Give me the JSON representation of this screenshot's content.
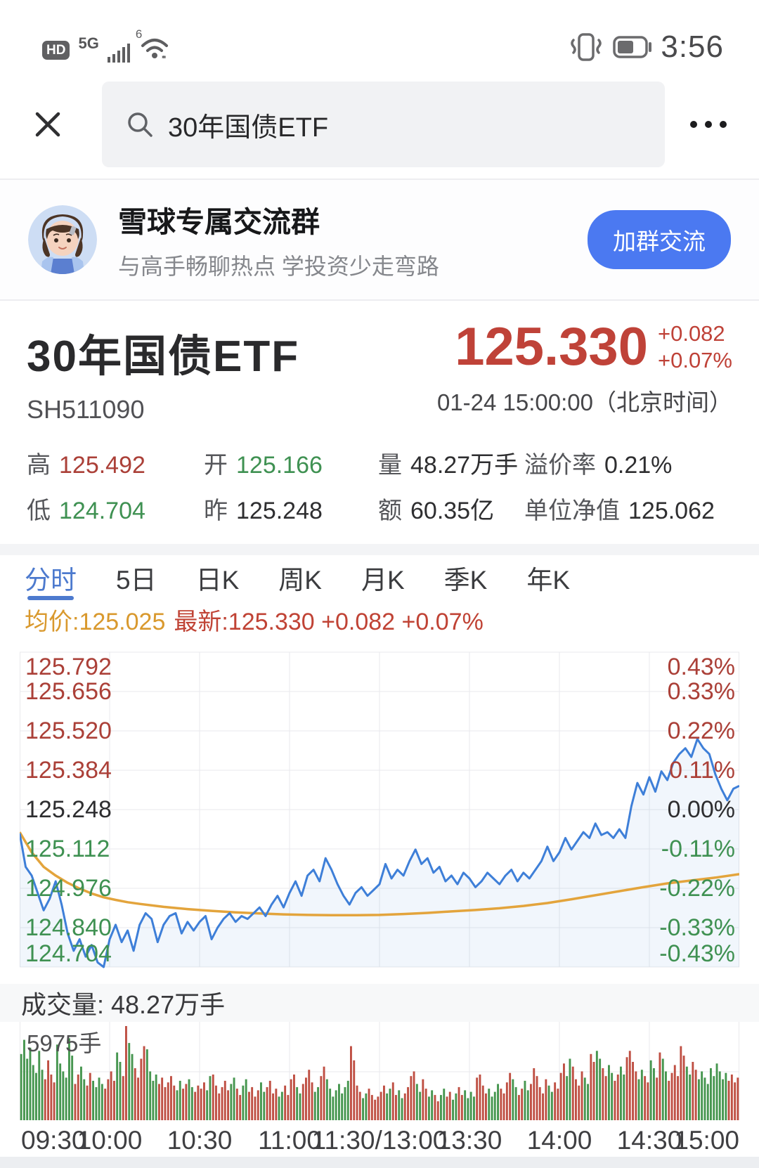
{
  "status_bar": {
    "carrier_badge": "HD",
    "network": "5G",
    "wifi_label": "6",
    "time": "3:56"
  },
  "search": {
    "query": "30年国债ETF"
  },
  "banner": {
    "title": "雪球专属交流群",
    "subtitle": "与高手畅聊热点 学投资少走弯路",
    "button_label": "加群交流"
  },
  "stock": {
    "name": "30年国债ETF",
    "code": "SH511090",
    "price": "125.330",
    "change": "+0.082",
    "change_pct": "+0.07%",
    "timestamp": "01-24 15:00:00（北京时间）",
    "stats": [
      {
        "label": "高",
        "value": "125.492",
        "tone": "up"
      },
      {
        "label": "开",
        "value": "125.166",
        "tone": "down"
      },
      {
        "label": "量",
        "value": "48.27万手",
        "tone": "flat"
      },
      {
        "label": "溢价率",
        "value": "0.21%",
        "tone": "flat"
      },
      {
        "label": "低",
        "value": "124.704",
        "tone": "down"
      },
      {
        "label": "昨",
        "value": "125.248",
        "tone": "flat"
      },
      {
        "label": "额",
        "value": "60.35亿",
        "tone": "flat"
      },
      {
        "label": "单位净值",
        "value": "125.062",
        "tone": "flat"
      }
    ]
  },
  "tabs": [
    {
      "label": "分时",
      "active": true
    },
    {
      "label": "5日",
      "active": false
    },
    {
      "label": "日K",
      "active": false
    },
    {
      "label": "周K",
      "active": false
    },
    {
      "label": "月K",
      "active": false
    },
    {
      "label": "季K",
      "active": false
    },
    {
      "label": "年K",
      "active": false
    }
  ],
  "chart_info": {
    "avg": "均价:125.025",
    "latest": "最新:125.330 +0.082 +0.07%"
  },
  "chart_data": {
    "type": "line",
    "title": "分时 (intraday price of 30年国债ETF SH511090)",
    "prev_close": 125.248,
    "high": 125.492,
    "low": 124.704,
    "last": 125.33,
    "vwap": 125.025,
    "y_min": 124.704,
    "y_max": 125.792,
    "x_axis": {
      "labels": [
        "09:30",
        "10:00",
        "10:30",
        "11:00",
        "11:30/13:00",
        "13:30",
        "14:00",
        "14:30",
        "15:00"
      ],
      "fractions": [
        0,
        0.125,
        0.25,
        0.375,
        0.5,
        0.625,
        0.75,
        0.875,
        1
      ]
    },
    "y_axis_left": [
      {
        "text": "125.792",
        "tone": "up"
      },
      {
        "text": "125.656",
        "tone": "up"
      },
      {
        "text": "125.520",
        "tone": "up"
      },
      {
        "text": "125.384",
        "tone": "up"
      },
      {
        "text": "125.248",
        "tone": "flat"
      },
      {
        "text": "125.112",
        "tone": "down"
      },
      {
        "text": "124.976",
        "tone": "down"
      },
      {
        "text": "124.840",
        "tone": "down"
      },
      {
        "text": "124.704",
        "tone": "down"
      }
    ],
    "y_axis_right": [
      {
        "text": "0.43%",
        "tone": "up"
      },
      {
        "text": "0.33%",
        "tone": "up"
      },
      {
        "text": "0.22%",
        "tone": "up"
      },
      {
        "text": "0.11%",
        "tone": "up"
      },
      {
        "text": "0.00%",
        "tone": "flat"
      },
      {
        "text": "-0.11%",
        "tone": "down"
      },
      {
        "text": "-0.22%",
        "tone": "down"
      },
      {
        "text": "-0.33%",
        "tone": "down"
      },
      {
        "text": "-0.43%",
        "tone": "down"
      }
    ],
    "price_minutes_step": 2,
    "price": [
      125.166,
      125.05,
      125.02,
      124.96,
      124.9,
      124.94,
      125.0,
      124.92,
      124.82,
      124.76,
      124.8,
      124.74,
      124.78,
      124.72,
      124.704,
      124.8,
      124.85,
      124.79,
      124.83,
      124.76,
      124.85,
      124.89,
      124.87,
      124.79,
      124.85,
      124.88,
      124.89,
      124.82,
      124.86,
      124.83,
      124.86,
      124.88,
      124.8,
      124.84,
      124.87,
      124.89,
      124.86,
      124.88,
      124.87,
      124.89,
      124.91,
      124.88,
      124.92,
      124.95,
      124.91,
      124.96,
      125.0,
      124.95,
      125.02,
      125.04,
      125.0,
      125.08,
      125.04,
      124.99,
      124.95,
      124.92,
      124.96,
      124.98,
      124.95,
      124.97,
      124.99,
      125.06,
      125.01,
      125.04,
      125.02,
      125.07,
      125.11,
      125.06,
      125.08,
      125.03,
      125.05,
      125.0,
      125.02,
      124.99,
      125.03,
      125.01,
      124.98,
      125.0,
      125.03,
      125.01,
      124.99,
      125.02,
      125.04,
      125.0,
      125.03,
      125.01,
      125.04,
      125.07,
      125.12,
      125.07,
      125.1,
      125.15,
      125.11,
      125.14,
      125.17,
      125.15,
      125.2,
      125.16,
      125.17,
      125.15,
      125.18,
      125.15,
      125.26,
      125.34,
      125.3,
      125.36,
      125.31,
      125.38,
      125.35,
      125.41,
      125.44,
      125.46,
      125.43,
      125.492,
      125.46,
      125.44,
      125.37,
      125.32,
      125.28,
      125.32,
      125.33
    ],
    "avg_points": [
      [
        0,
        125.17
      ],
      [
        4,
        125.1
      ],
      [
        8,
        125.05
      ],
      [
        12,
        125.02
      ],
      [
        16,
        124.995
      ],
      [
        20,
        124.975
      ],
      [
        24,
        124.958
      ],
      [
        28,
        124.945
      ],
      [
        32,
        124.936
      ],
      [
        36,
        124.928
      ],
      [
        40,
        124.922
      ],
      [
        48,
        124.912
      ],
      [
        56,
        124.904
      ],
      [
        64,
        124.898
      ],
      [
        72,
        124.893
      ],
      [
        80,
        124.889
      ],
      [
        88,
        124.886
      ],
      [
        96,
        124.884
      ],
      [
        104,
        124.883
      ],
      [
        112,
        124.883
      ],
      [
        120,
        124.884
      ],
      [
        128,
        124.887
      ],
      [
        136,
        124.891
      ],
      [
        144,
        124.896
      ],
      [
        152,
        124.901
      ],
      [
        160,
        124.907
      ],
      [
        168,
        124.915
      ],
      [
        176,
        124.925
      ],
      [
        184,
        124.938
      ],
      [
        192,
        124.952
      ],
      [
        200,
        124.966
      ],
      [
        208,
        124.98
      ],
      [
        216,
        124.993
      ],
      [
        224,
        125.003
      ],
      [
        232,
        125.013
      ],
      [
        240,
        125.025
      ]
    ],
    "volume": {
      "pane_label": "成交量: 48.27万手",
      "scale_label": "5975手",
      "max": 5975,
      "values": [
        4200,
        5100,
        3900,
        4600,
        3500,
        3000,
        4400,
        3200,
        2600,
        3800,
        2900,
        2400,
        4800,
        3600,
        3100,
        2700,
        5200,
        4100,
        2300,
        2900,
        3400,
        2600,
        2200,
        3000,
        2500,
        2100,
        2700,
        2300,
        2000,
        2600,
        3100,
        2500,
        4300,
        3700,
        2800,
        5975,
        4900,
        4200,
        3300,
        2700,
        3900,
        4700,
        4500,
        3100,
        2500,
        2900,
        2300,
        2700,
        2100,
        2400,
        2800,
        2200,
        1900,
        2500,
        2000,
        2300,
        2600,
        2100,
        1800,
        2200,
        2000,
        2400,
        1900,
        2800,
        2900,
        2200,
        1700,
        2100,
        2500,
        1900,
        2300,
        2700,
        2000,
        1600,
        2200,
        2600,
        1800,
        2100,
        1500,
        1900,
        2400,
        1800,
        2100,
        2500,
        1700,
        2000,
        1500,
        1800,
        2200,
        1600,
        2600,
        2900,
        2100,
        1700,
        2300,
        2700,
        3200,
        2400,
        1800,
        2100,
        2800,
        3400,
        2600,
        2000,
        1500,
        1900,
        2300,
        1700,
        2100,
        2500,
        4700,
        3800,
        2200,
        1800,
        1400,
        1700,
        2000,
        1600,
        1300,
        1500,
        1800,
        2200,
        1700,
        2000,
        2400,
        1600,
        1900,
        1400,
        1700,
        2100,
        2800,
        3100,
        2300,
        1800,
        2600,
        2000,
        1500,
        1900,
        1600,
        1200,
        1600,
        2000,
        1500,
        1800,
        1300,
        1700,
        2100,
        1600,
        1900,
        1400,
        1800,
        1500,
        2700,
        2900,
        2200,
        1700,
        2000,
        1500,
        1800,
        2300,
        2000,
        1700,
        2400,
        3000,
        2600,
        2100,
        1600,
        2000,
        2500,
        1900,
        2300,
        3300,
        2800,
        2100,
        1700,
        2600,
        2200,
        1800,
        2400,
        2000,
        3000,
        3600,
        2800,
        3900,
        3400,
        2600,
        2200,
        3100,
        2700,
        2300,
        4200,
        3700,
        4400,
        3900,
        3300,
        2800,
        3500,
        3000,
        2500,
        2900,
        3400,
        2900,
        4000,
        4400,
        3700,
        3100,
        2600,
        3200,
        2800,
        2400,
        3800,
        3300,
        2700,
        4300,
        3900,
        3100,
        2500,
        3000,
        3500,
        2800,
        4700,
        4100,
        3400,
        2900,
        3700,
        3200,
        2600,
        3100,
        2700,
        2300,
        3300,
        2800,
        3600,
        3100,
        2600,
        3000,
        2500,
        2900,
        2400,
        2700
      ]
    },
    "palette": {
      "line": "#3e7fd8",
      "avg": "#e3a43c",
      "fill": "rgba(62,127,216,0.07)",
      "grid": "#e9e9ec",
      "up": "#ab4038",
      "down": "#3f9152",
      "flat": "#2e2e30",
      "vol_up": "#bf4f43",
      "vol_down": "#46964f"
    }
  }
}
